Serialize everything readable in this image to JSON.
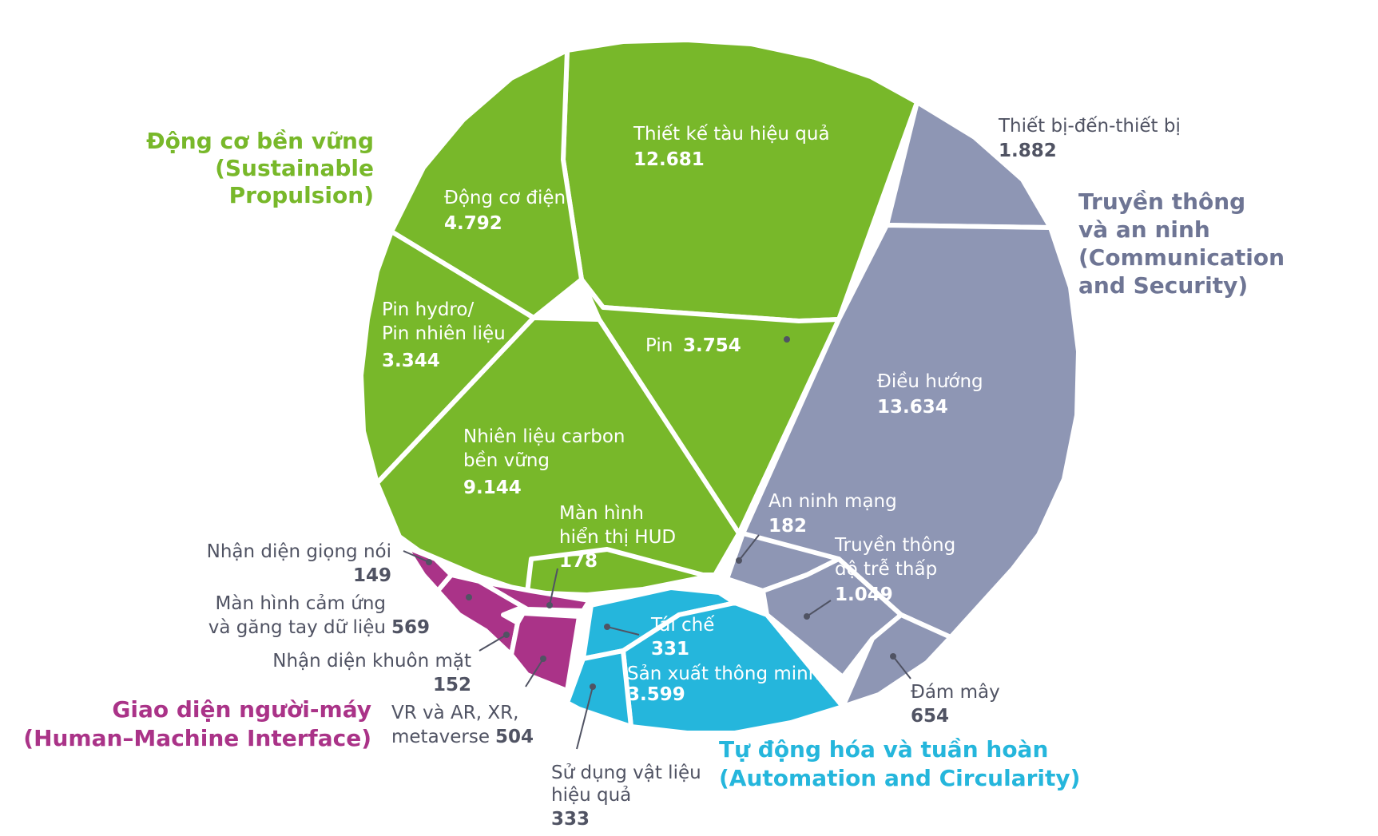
{
  "chart_data": {
    "type": "voronoi-treemap",
    "colors": {
      "sustainable": "#78B82A",
      "communication": "#8E96B4",
      "automation": "#25B6DC",
      "hmi": "#AA3388",
      "outer_text": "#505363"
    },
    "groups": [
      {
        "key": "sustainable",
        "name_vi": "Động cơ bền vững",
        "name_en_1": "(Sustainable",
        "name_en_2": "Propulsion)",
        "items": [
          {
            "key": "ship",
            "label": "Thiết kế tàu hiệu quả",
            "value": "12.681"
          },
          {
            "key": "electric",
            "label": "Động cơ điện",
            "value": "4.792"
          },
          {
            "key": "hydro",
            "label_1": "Pin hydro/",
            "label_2": "Pin nhiên liệu",
            "value": "3.344"
          },
          {
            "key": "battery",
            "label": "Pin",
            "value": "3.754"
          },
          {
            "key": "saf",
            "label_1": "Nhiên liệu carbon",
            "label_2": "bền vững",
            "value": "9.144"
          },
          {
            "key": "hud",
            "label_1": "Màn hình",
            "label_2": "hiển thị HUD",
            "value": "178"
          }
        ]
      },
      {
        "key": "communication",
        "name_1": "Truyền thông",
        "name_2": "và an ninh",
        "name_3": "(Communication",
        "name_4": "and Security)",
        "items": [
          {
            "key": "d2d",
            "label": "Thiết bị-đến-thiết bị",
            "value": "1.882"
          },
          {
            "key": "nav",
            "label": "Điều hướng",
            "value": "13.634"
          },
          {
            "key": "cyber",
            "label": "An ninh mạng",
            "value": "182"
          },
          {
            "key": "lowlat",
            "label_1": "Truyền thông",
            "label_2": "độ trễ thấp",
            "value": "1.049"
          },
          {
            "key": "cloud",
            "label": "Đám mây",
            "value": "654"
          }
        ]
      },
      {
        "key": "automation",
        "name_vi": "Tự động hóa và tuần hoàn",
        "name_en": "(Automation and Circularity)",
        "items": [
          {
            "key": "recycle",
            "label": "Tái chế",
            "value": "331"
          },
          {
            "key": "smartmfg",
            "label": "Sản xuất thông minh",
            "value": "3.599"
          },
          {
            "key": "material",
            "label_1": "Sử dụng vật liệu",
            "label_2": "hiệu quả",
            "value": "333"
          }
        ]
      },
      {
        "key": "hmi",
        "name_vi": "Giao diện người-máy",
        "name_en": "(Human–Machine Interface)",
        "items": [
          {
            "key": "voice",
            "label": "Nhận diện giọng nói",
            "value": "149"
          },
          {
            "key": "touch",
            "label_1": "Màn hình cảm ứng",
            "label_2": "và găng tay dữ liệu",
            "value": "569"
          },
          {
            "key": "face",
            "label": "Nhận diện khuôn mặt",
            "value": "152"
          },
          {
            "key": "vr",
            "label_1": "VR và AR, XR,",
            "label_2": "metaverse",
            "value": "504"
          }
        ]
      }
    ]
  }
}
